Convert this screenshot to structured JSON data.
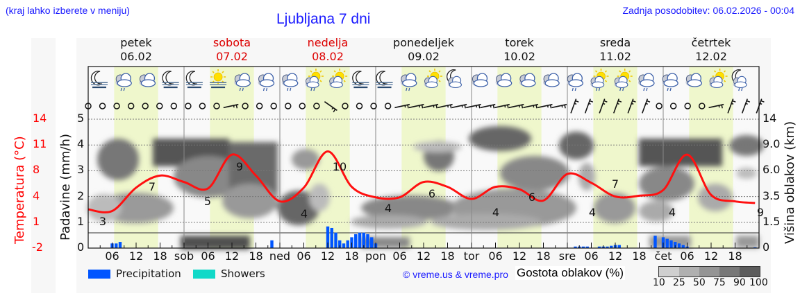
{
  "header": {
    "location_hint": "(kraj lahko izberete v meniju)",
    "title": "Ljubljana 7 dni",
    "last_update": "Zadnja posodobitev: 06.02.2026 - 00:04"
  },
  "days": [
    {
      "name": "petek",
      "date": "06.02",
      "weekend": false
    },
    {
      "name": "sobota",
      "date": "07.02",
      "weekend": true
    },
    {
      "name": "nedelja",
      "date": "08.02",
      "weekend": true
    },
    {
      "name": "ponedeljek",
      "date": "09.02",
      "weekend": false
    },
    {
      "name": "torek",
      "date": "10.02",
      "weekend": false
    },
    {
      "name": "sreda",
      "date": "11.02",
      "weekend": false
    },
    {
      "name": "četrtek",
      "date": "12.02",
      "weekend": false
    }
  ],
  "axes": {
    "temperature_label": "Temperatura (°C)",
    "precip_label": "Padavine (mm/h)",
    "cloud_height_label": "Višina oblakov (km)",
    "temperature_ticks": [
      "14",
      "11",
      "8",
      "4",
      "1",
      "-2"
    ],
    "precip_ticks": [
      "5",
      "4",
      "3",
      "2",
      "1",
      "0"
    ],
    "cloud_height_ticks": [
      "14",
      "9.0",
      "6.0",
      "3.5",
      "1.5",
      "0"
    ],
    "x_ticks": [
      "06",
      "12",
      "18",
      "sob",
      "06",
      "12",
      "18",
      "ned",
      "06",
      "12",
      "18",
      "pon",
      "06",
      "12",
      "18",
      "tor",
      "06",
      "12",
      "18",
      "sre",
      "06",
      "12",
      "18",
      "čet",
      "06",
      "12",
      "18"
    ]
  },
  "legend": {
    "precipitation_label": "Precipitation",
    "showers_label": "Showers",
    "precipitation_color": "#0055ff",
    "showers_color": "#11d9c8",
    "copyright": "© vreme.us & vreme.pro",
    "cloud_density_label": "Gostota oblakov (%)",
    "cloud_scale": [
      "10",
      "25",
      "50",
      "75",
      "90",
      "100"
    ],
    "cloud_scale_colors": [
      "#cfcfcf",
      "#b0b0b0",
      "#949494",
      "#787878",
      "#5c5c5c"
    ]
  },
  "weather_icons": [
    "moon-fog",
    "cloud-rain",
    "cloud",
    "moon-fog",
    "moon-fog",
    "sun-fog",
    "cloud-rain",
    "cloud-rain",
    "cloud-rain",
    "sun-cloud-rain",
    "sun-cloud",
    "moon-fog",
    "moon-fog",
    "cloud-rain",
    "sun-cloud",
    "moon-cloud",
    "cloud",
    "cloud",
    "cloud",
    "cloud",
    "cloud-rain",
    "sun-cloud-rain",
    "sun-cloud-rain",
    "cloud-rain",
    "cloud-rain",
    "cloud",
    "sun-cloud",
    "moon-cloud-rain"
  ],
  "chart_data": {
    "type": "line",
    "title": "Ljubljana 7 dni",
    "xlabel": "",
    "ylabel": "Temperatura (°C) / Padavine (mm/h)",
    "y2label": "Višina oblakov (km)",
    "temperature_ylim": [
      -2,
      14
    ],
    "precip_ylim": [
      0,
      5
    ],
    "grid": true,
    "series": [
      {
        "name": "Temperatura (°C)",
        "color": "#ff0000",
        "hours": [
          0,
          6,
          12,
          18,
          24,
          30,
          36,
          42,
          48,
          54,
          60,
          66,
          72,
          78,
          84,
          90,
          96,
          102,
          108,
          114,
          120,
          126,
          132,
          138,
          144,
          150,
          156,
          162,
          167
        ],
        "values": [
          2.8,
          2.6,
          5.5,
          7.0,
          6.2,
          5.4,
          9.6,
          7.0,
          3.8,
          5.5,
          10.0,
          5.6,
          4.3,
          4.3,
          6.2,
          5.6,
          4.1,
          5.6,
          5.3,
          3.9,
          7.2,
          6.1,
          4.4,
          4.5,
          5.2,
          9.6,
          4.6,
          3.8,
          3.6
        ],
        "labels": [
          {
            "hour": 3,
            "value": "3"
          },
          {
            "hour": 21,
            "value": "7"
          },
          {
            "hour": 39,
            "value": "5"
          },
          {
            "hour": 51,
            "value": "9"
          },
          {
            "hour": 71,
            "value": "4"
          },
          {
            "hour": 84,
            "value": "10"
          },
          {
            "hour": 99,
            "value": "4"
          },
          {
            "hour": 111,
            "value": "6"
          },
          {
            "hour": 123,
            "value": "4"
          },
          {
            "hour": 133,
            "value": "6"
          },
          {
            "hour": 147,
            "value": "4"
          },
          {
            "hour": 156,
            "value": "7"
          },
          {
            "hour": 167,
            "value": "4"
          },
          {
            "hour": 160,
            "value": "9"
          }
        ]
      },
      {
        "name": "Precipitation (mm/h)",
        "color": "#0055ff",
        "bars": [
          {
            "hour": 6,
            "value": 0.3
          },
          {
            "hour": 7,
            "value": 0.3
          },
          {
            "hour": 8,
            "value": 0.4
          },
          {
            "hour": 46,
            "value": 0.5
          },
          {
            "hour": 60,
            "value": 1.4
          },
          {
            "hour": 61,
            "value": 1.3
          },
          {
            "hour": 62,
            "value": 1.0
          },
          {
            "hour": 63,
            "value": 0.5
          },
          {
            "hour": 64,
            "value": 0.3
          },
          {
            "hour": 65,
            "value": 0.5
          },
          {
            "hour": 66,
            "value": 0.7
          },
          {
            "hour": 67,
            "value": 0.9
          },
          {
            "hour": 68,
            "value": 1.0
          },
          {
            "hour": 69,
            "value": 1.0
          },
          {
            "hour": 70,
            "value": 0.9
          },
          {
            "hour": 71,
            "value": 0.7
          },
          {
            "hour": 72,
            "value": 0.3
          },
          {
            "hour": 122,
            "value": 0.1
          },
          {
            "hour": 123,
            "value": 0.1
          },
          {
            "hour": 124,
            "value": 0.1
          },
          {
            "hour": 125,
            "value": 0.1
          },
          {
            "hour": 128,
            "value": 0.1
          },
          {
            "hour": 129,
            "value": 0.1
          },
          {
            "hour": 130,
            "value": 0.1
          },
          {
            "hour": 131,
            "value": 0.15
          },
          {
            "hour": 132,
            "value": 0.2
          },
          {
            "hour": 133,
            "value": 0.2
          },
          {
            "hour": 142,
            "value": 0.8
          },
          {
            "hour": 144,
            "value": 0.7
          },
          {
            "hour": 145,
            "value": 0.6
          },
          {
            "hour": 146,
            "value": 0.5
          },
          {
            "hour": 147,
            "value": 0.4
          },
          {
            "hour": 148,
            "value": 0.3
          },
          {
            "hour": 149,
            "value": 0.2
          },
          {
            "hour": 150,
            "value": 0.1
          },
          {
            "hour": 167,
            "value": 0.05
          }
        ]
      }
    ]
  }
}
